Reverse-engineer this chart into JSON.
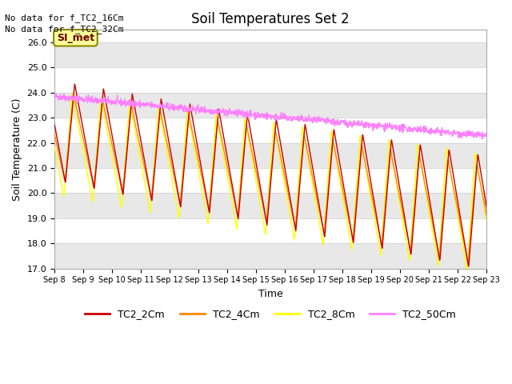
{
  "title": "Soil Temperatures Set 2",
  "xlabel": "Time",
  "ylabel": "Soil Temperature (C)",
  "ylim": [
    17.0,
    26.5
  ],
  "yticks": [
    17.0,
    18.0,
    19.0,
    20.0,
    21.0,
    22.0,
    23.0,
    24.0,
    25.0,
    26.0
  ],
  "x_tick_labels": [
    "Sep 8",
    "Sep 9",
    "Sep 10",
    "Sep 11",
    "Sep 12",
    "Sep 13",
    "Sep 14",
    "Sep 15",
    "Sep 16",
    "Sep 17",
    "Sep 18",
    "Sep 19",
    "Sep 20",
    "Sep 21",
    "Sep 22",
    "Sep 23"
  ],
  "no_data_text": [
    "No data for f_TC2_16Cm",
    "No data for f_TC2_32Cm"
  ],
  "legend_labels": [
    "TC2_2Cm",
    "TC2_4Cm",
    "TC2_8Cm",
    "TC2_50Cm"
  ],
  "legend_colors": [
    "#cc0000",
    "#ff8800",
    "#ffff00",
    "#ff80ff"
  ],
  "simet_label": "SI_met",
  "background_color": "#ffffff",
  "plot_bg_color": "#ffffff",
  "band_color_light": "#e8e8e8",
  "band_color_white": "#ffffff",
  "grid_color": "#ffffff",
  "annotation_box_color": "#ffff99",
  "annotation_box_edge": "#888800"
}
